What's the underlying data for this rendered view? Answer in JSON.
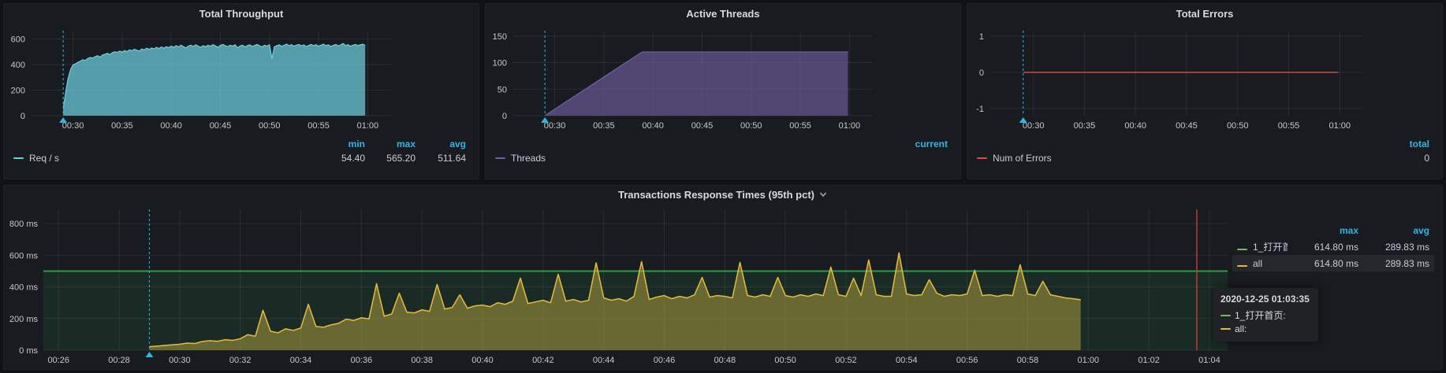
{
  "colors": {
    "page_bg": "#111217",
    "panel_bg": "#181b1f",
    "panel_border": "#202226",
    "grid": "rgba(255,255,255,0.08)",
    "tick_text": "#c7c8ca",
    "title_text": "#d8d9da",
    "legend_text": "#ccccdc",
    "stat_header_blue": "#33b5e5",
    "annotation_cyan": "#33b5e5",
    "crosshair_red": "#bf3a32",
    "threshold_green": "#299c46",
    "series_teal": "#6ED0E0",
    "series_purple": "#705DA0",
    "series_red": "#E24D42",
    "series_green": "#7EB26D",
    "series_yellow": "#EAB839",
    "tooltip_bg": "#202226"
  },
  "chart_data": [
    {
      "id": "total-throughput",
      "type": "area",
      "title": "Total Throughput",
      "xlabel": "",
      "ylabel": "",
      "xlim": [
        25.7,
        62.3
      ],
      "ylim": [
        0,
        665
      ],
      "grid": true,
      "layout": {
        "margins": {
          "l": 34,
          "r": 112,
          "t": 10,
          "b": 26
        }
      },
      "xticks": [
        {
          "t": 30,
          "label": "00:30"
        },
        {
          "t": 35,
          "label": "00:35"
        },
        {
          "t": 40,
          "label": "00:40"
        },
        {
          "t": 45,
          "label": "00:45"
        },
        {
          "t": 50,
          "label": "00:50"
        },
        {
          "t": 55,
          "label": "00:55"
        },
        {
          "t": 60,
          "label": "01:00"
        }
      ],
      "yticks": [
        {
          "v": 0,
          "label": "0"
        },
        {
          "v": 200,
          "label": "200"
        },
        {
          "v": 400,
          "label": "400"
        },
        {
          "v": 600,
          "label": "600"
        }
      ],
      "annotations": [
        {
          "t": 29
        }
      ],
      "series": [
        {
          "name": "Req / s",
          "color": "#6ED0E0",
          "fill": "rgba(110,208,224,0.72)",
          "width": 1.2,
          "start_min": 29,
          "step_min": 0.25,
          "values": [
            54,
            180,
            290,
            360,
            398,
            406,
            418,
            426,
            438,
            431,
            448,
            455,
            452,
            462,
            470,
            458,
            475,
            480,
            488,
            478,
            492,
            500,
            495,
            505,
            498,
            510,
            502,
            515,
            508,
            520,
            512,
            505,
            522,
            515,
            528,
            518,
            530,
            522,
            535,
            525,
            538,
            528,
            540,
            532,
            545,
            535,
            548,
            538,
            552,
            540,
            530,
            545,
            552,
            542,
            555,
            545,
            535,
            548,
            540,
            552,
            544,
            556,
            546,
            536,
            550,
            558,
            548,
            540,
            552,
            544,
            556,
            530,
            545,
            552,
            538,
            548,
            555,
            542,
            550,
            558,
            546,
            538,
            552,
            544,
            556,
            448,
            540,
            548,
            554,
            542,
            552,
            560,
            548,
            556,
            544,
            552,
            558,
            546,
            554,
            540,
            550,
            558,
            548,
            556,
            544,
            552,
            560,
            548,
            554,
            542,
            550,
            558,
            546,
            554,
            565,
            548,
            556,
            544,
            552,
            558,
            548,
            554,
            560,
            550
          ]
        }
      ],
      "legend": {
        "position": "bottom",
        "headers": [
          "min",
          "max",
          "avg"
        ],
        "rows": [
          {
            "name": "Req / s",
            "color": "#6ED0E0",
            "values": [
              "54.40",
              "565.20",
              "511.64"
            ]
          }
        ]
      }
    },
    {
      "id": "active-threads",
      "type": "area",
      "title": "Active Threads",
      "xlabel": "",
      "ylabel": "",
      "xlim": [
        25.7,
        62.3
      ],
      "ylim": [
        0,
        160
      ],
      "grid": true,
      "layout": {
        "margins": {
          "l": 34,
          "r": 112,
          "t": 10,
          "b": 26
        }
      },
      "xticks": [
        {
          "t": 30,
          "label": "00:30"
        },
        {
          "t": 35,
          "label": "00:35"
        },
        {
          "t": 40,
          "label": "00:40"
        },
        {
          "t": 45,
          "label": "00:45"
        },
        {
          "t": 50,
          "label": "00:50"
        },
        {
          "t": 55,
          "label": "00:55"
        },
        {
          "t": 60,
          "label": "01:00"
        }
      ],
      "yticks": [
        {
          "v": 0,
          "label": "0"
        },
        {
          "v": 50,
          "label": "50"
        },
        {
          "v": 100,
          "label": "100"
        },
        {
          "v": 150,
          "label": "150"
        }
      ],
      "annotations": [
        {
          "t": 29
        }
      ],
      "series": [
        {
          "name": "Threads",
          "color": "#705DA0",
          "fill": "rgba(112,93,160,0.65)",
          "width": 1.3,
          "points": [
            [
              29,
              0
            ],
            [
              38.9,
              120
            ],
            [
              59.85,
              120
            ]
          ]
        }
      ],
      "legend": {
        "position": "bottom",
        "headers": [
          "current"
        ],
        "rows": [
          {
            "name": "Threads",
            "color": "#705DA0",
            "values": [
              ""
            ]
          }
        ]
      }
    },
    {
      "id": "total-errors",
      "type": "line",
      "title": "Total Errors",
      "xlabel": "",
      "ylabel": "",
      "xlim": [
        25.7,
        62.3
      ],
      "ylim": [
        -1.2,
        1.15
      ],
      "grid": true,
      "layout": {
        "margins": {
          "l": 28,
          "r": 100,
          "t": 10,
          "b": 26
        }
      },
      "xticks": [
        {
          "t": 30,
          "label": "00:30"
        },
        {
          "t": 35,
          "label": "00:35"
        },
        {
          "t": 40,
          "label": "00:40"
        },
        {
          "t": 45,
          "label": "00:45"
        },
        {
          "t": 50,
          "label": "00:50"
        },
        {
          "t": 55,
          "label": "00:55"
        },
        {
          "t": 60,
          "label": "01:00"
        }
      ],
      "yticks": [
        {
          "v": -1,
          "label": "-1"
        },
        {
          "v": 0,
          "label": "0"
        },
        {
          "v": 1,
          "label": "1"
        }
      ],
      "annotations": [
        {
          "t": 29
        }
      ],
      "series": [
        {
          "name": "Num of Errors",
          "color": "#E24D42",
          "width": 1.4,
          "points": [
            [
              29.05,
              0
            ],
            [
              59.85,
              0
            ]
          ]
        }
      ],
      "legend": {
        "position": "bottom",
        "headers": [
          "total"
        ],
        "rows": [
          {
            "name": "Num of Errors",
            "color": "#E24D42",
            "values": [
              "0"
            ]
          }
        ]
      }
    },
    {
      "id": "transactions-response-times",
      "type": "line",
      "title": "Transactions Response Times (95th pct)",
      "xlabel": "",
      "ylabel": "",
      "xlim": [
        25.5,
        64.6
      ],
      "ylim": [
        0,
        890
      ],
      "grid": true,
      "layout": {
        "margins": {
          "l": 50,
          "r": 6,
          "t": 8,
          "b": 24
        }
      },
      "xticks": [
        {
          "t": 26,
          "label": "00:26"
        },
        {
          "t": 28,
          "label": "00:28"
        },
        {
          "t": 30,
          "label": "00:30"
        },
        {
          "t": 32,
          "label": "00:32"
        },
        {
          "t": 34,
          "label": "00:34"
        },
        {
          "t": 36,
          "label": "00:36"
        },
        {
          "t": 38,
          "label": "00:38"
        },
        {
          "t": 40,
          "label": "00:40"
        },
        {
          "t": 42,
          "label": "00:42"
        },
        {
          "t": 44,
          "label": "00:44"
        },
        {
          "t": 46,
          "label": "00:46"
        },
        {
          "t": 48,
          "label": "00:48"
        },
        {
          "t": 50,
          "label": "00:50"
        },
        {
          "t": 52,
          "label": "00:52"
        },
        {
          "t": 54,
          "label": "00:54"
        },
        {
          "t": 56,
          "label": "00:56"
        },
        {
          "t": 58,
          "label": "00:58"
        },
        {
          "t": 60,
          "label": "01:00"
        },
        {
          "t": 62,
          "label": "01:02"
        },
        {
          "t": 64,
          "label": "01:04"
        }
      ],
      "yticks": [
        {
          "v": 0,
          "label": "0 ms"
        },
        {
          "v": 200,
          "label": "200 ms"
        },
        {
          "v": 400,
          "label": "400 ms"
        },
        {
          "v": 600,
          "label": "600 ms"
        },
        {
          "v": 800,
          "label": "800 ms"
        }
      ],
      "threshold": {
        "value": 500,
        "line_color": "#299c46",
        "fill": "rgba(41,156,70,0.13)"
      },
      "annotations": [
        {
          "t": 29
        }
      ],
      "crosshair": {
        "t": 63.583
      },
      "shared_values": [
        22,
        26,
        30,
        34,
        38,
        45,
        42,
        55,
        60,
        56,
        66,
        62,
        72,
        98,
        88,
        252,
        120,
        110,
        135,
        125,
        140,
        290,
        150,
        145,
        160,
        170,
        196,
        188,
        205,
        198,
        420,
        215,
        228,
        360,
        240,
        235,
        255,
        245,
        415,
        260,
        270,
        350,
        265,
        280,
        285,
        275,
        300,
        290,
        310,
        455,
        295,
        305,
        315,
        300,
        480,
        310,
        320,
        305,
        315,
        552,
        330,
        315,
        325,
        310,
        340,
        560,
        320,
        335,
        345,
        325,
        340,
        330,
        350,
        460,
        335,
        345,
        340,
        330,
        555,
        345,
        335,
        350,
        340,
        460,
        345,
        335,
        350,
        340,
        355,
        345,
        525,
        350,
        340,
        455,
        345,
        570,
        350,
        340,
        340,
        615,
        355,
        345,
        350,
        445,
        360,
        340,
        350,
        345,
        355,
        505,
        345,
        350,
        340,
        350,
        345,
        540,
        355,
        345,
        435,
        350,
        340,
        330,
        325,
        318
      ],
      "series": [
        {
          "name": "1_打开首页",
          "color": "#7EB26D",
          "fill": "rgba(126,178,109,0.18)",
          "width": 1.4,
          "start_min": 29,
          "step_min": 0.25,
          "values": "shared"
        },
        {
          "name": "all",
          "color": "#EAB839",
          "fill": "rgba(234,184,57,0.32)",
          "width": 1.4,
          "start_min": 29,
          "step_min": 0.25,
          "values": "shared"
        }
      ],
      "legend": {
        "position": "right",
        "headers": [
          "max",
          "avg"
        ],
        "rows": [
          {
            "name": "1_打开首页",
            "color": "#7EB26D",
            "values": [
              "614.80 ms",
              "289.83 ms"
            ]
          },
          {
            "name": "all",
            "color": "#EAB839",
            "values": [
              "614.80 ms",
              "289.83 ms"
            ],
            "highlight": true
          }
        ]
      },
      "tooltip": {
        "title": "2020-12-25 01:03:35",
        "rows": [
          {
            "label": "1_打开首页:",
            "color": "#7EB26D"
          },
          {
            "label": "all:",
            "color": "#EAB839"
          }
        ]
      }
    }
  ]
}
